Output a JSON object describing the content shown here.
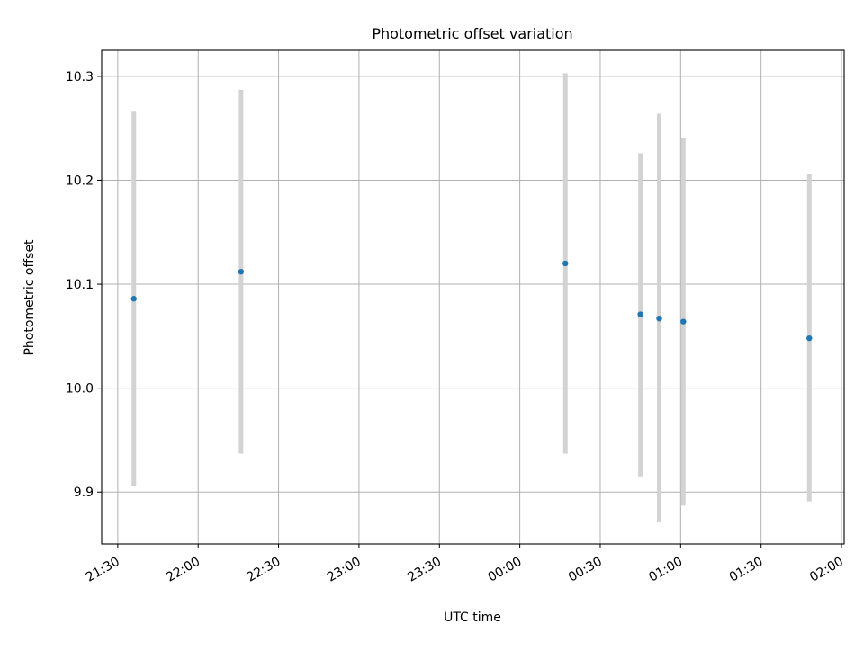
{
  "chart_data": {
    "type": "scatter",
    "title": "Photometric offset variation",
    "xlabel": "UTC time",
    "ylabel": "Photometric offset",
    "x_is_time": true,
    "xlim": [
      "21:24",
      "02:01"
    ],
    "ylim": [
      9.85,
      10.325
    ],
    "x_ticks": [
      "21:30",
      "22:00",
      "22:30",
      "23:00",
      "23:30",
      "00:00",
      "00:30",
      "01:00",
      "01:30",
      "02:00"
    ],
    "y_ticks": [
      "9.9",
      "10.0",
      "10.1",
      "10.2",
      "10.3"
    ],
    "grid": true,
    "point_color": "#1f77b4",
    "errorbar_color": "#d3d3d3",
    "points": [
      {
        "x": "21:36",
        "y": 10.086,
        "yerr_low": 9.906,
        "yerr_high": 10.266
      },
      {
        "x": "22:16",
        "y": 10.112,
        "yerr_low": 9.937,
        "yerr_high": 10.287
      },
      {
        "x": "00:17",
        "y": 10.12,
        "yerr_low": 9.937,
        "yerr_high": 10.303
      },
      {
        "x": "00:45",
        "y": 10.071,
        "yerr_low": 9.915,
        "yerr_high": 10.226
      },
      {
        "x": "00:52",
        "y": 10.067,
        "yerr_low": 9.871,
        "yerr_high": 10.264
      },
      {
        "x": "01:01",
        "y": 10.064,
        "yerr_low": 9.887,
        "yerr_high": 10.241
      },
      {
        "x": "01:48",
        "y": 10.048,
        "yerr_low": 9.891,
        "yerr_high": 10.206
      }
    ]
  }
}
